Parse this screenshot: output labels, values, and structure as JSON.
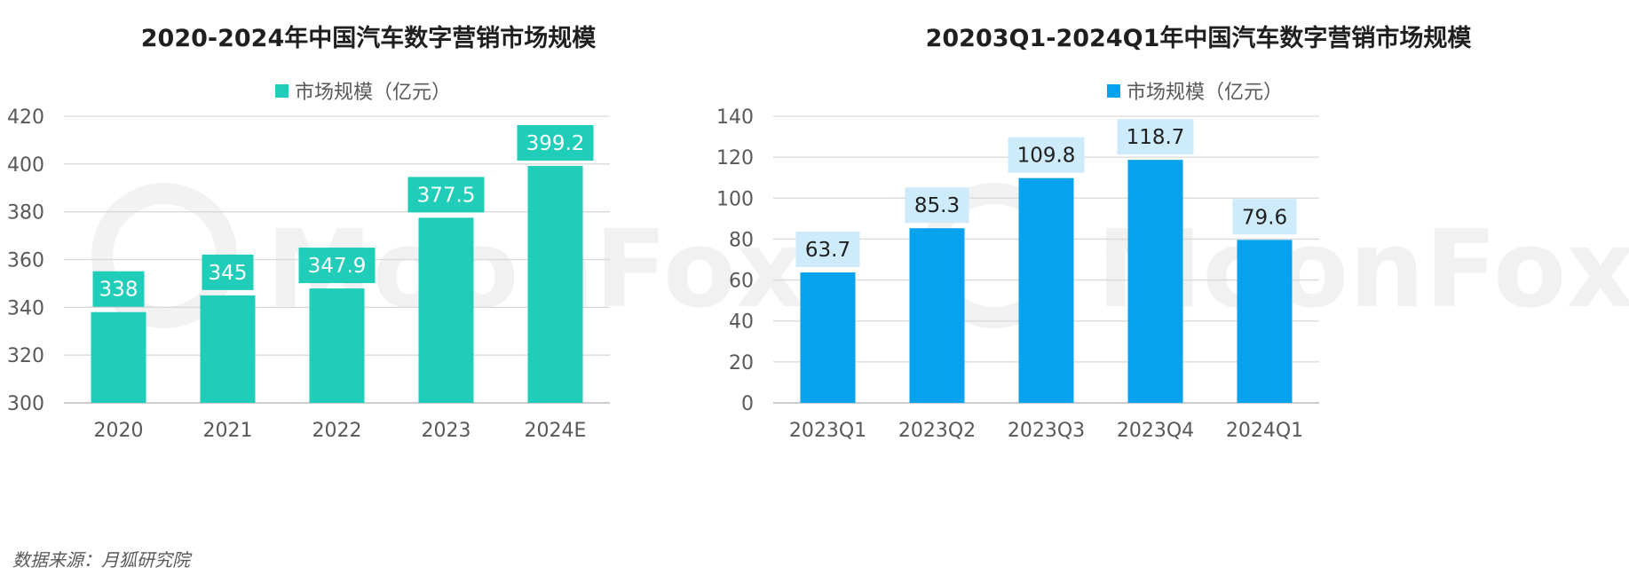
{
  "watermark": "MoonFox",
  "source_note": "数据来源：月狐研究院",
  "colors": {
    "left_bar": "#1fcdb9",
    "right_bar": "#06a2ee",
    "right_label_bg": "#cdebfb",
    "grid": "#d9d9d9",
    "axis_text": "#595959"
  },
  "chart_data": [
    {
      "type": "bar",
      "title": "2020-2024年中国汽车数字营销市场规模",
      "legend": "市场规模（亿元）",
      "categories": [
        "2020",
        "2021",
        "2022",
        "2023",
        "2024E"
      ],
      "series": [
        {
          "name": "市场规模（亿元）",
          "values": [
            338,
            345,
            347.9,
            377.5,
            399.2
          ]
        }
      ],
      "value_labels": [
        "338",
        "345",
        "347.9",
        "377.5",
        "399.2"
      ],
      "ylim": [
        300,
        420
      ],
      "yticks": [
        300,
        320,
        340,
        360,
        380,
        400,
        420
      ],
      "grid": true,
      "legend_position": "top-center"
    },
    {
      "type": "bar",
      "title": "20203Q1-2024Q1年中国汽车数字营销市场规模",
      "legend": "市场规模（亿元）",
      "categories": [
        "2023Q1",
        "2023Q2",
        "2023Q3",
        "2023Q4",
        "2024Q1"
      ],
      "series": [
        {
          "name": "市场规模（亿元）",
          "values": [
            63.7,
            85.3,
            109.8,
            118.7,
            79.6
          ]
        }
      ],
      "value_labels": [
        "63.7",
        "85.3",
        "109.8",
        "118.7",
        "79.6"
      ],
      "ylim": [
        0,
        140
      ],
      "yticks": [
        0,
        20,
        40,
        60,
        80,
        100,
        120,
        140
      ],
      "grid": true,
      "legend_position": "top-center"
    }
  ]
}
